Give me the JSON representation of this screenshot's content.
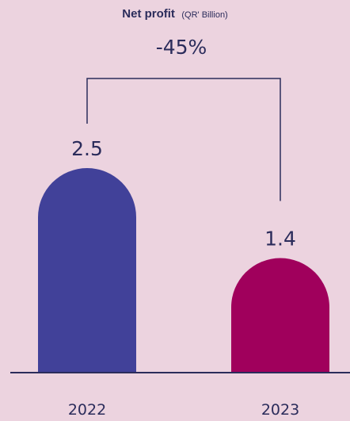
{
  "chart_data": {
    "type": "bar",
    "title": "Net profit",
    "subtitle": "(QR' Billion)",
    "categories": [
      "2022",
      "2023"
    ],
    "values": [
      2.5,
      1.4
    ],
    "value_labels": [
      "2.5",
      "1.4"
    ],
    "change_label": "-45%",
    "colors": [
      "#414199",
      "#a0005c"
    ],
    "axis_color": "#2b2c5b",
    "text_color": "#2b2c5b",
    "bracket_color": "#2b2c5b",
    "xlabel": "",
    "ylabel": "",
    "grid": false
  }
}
